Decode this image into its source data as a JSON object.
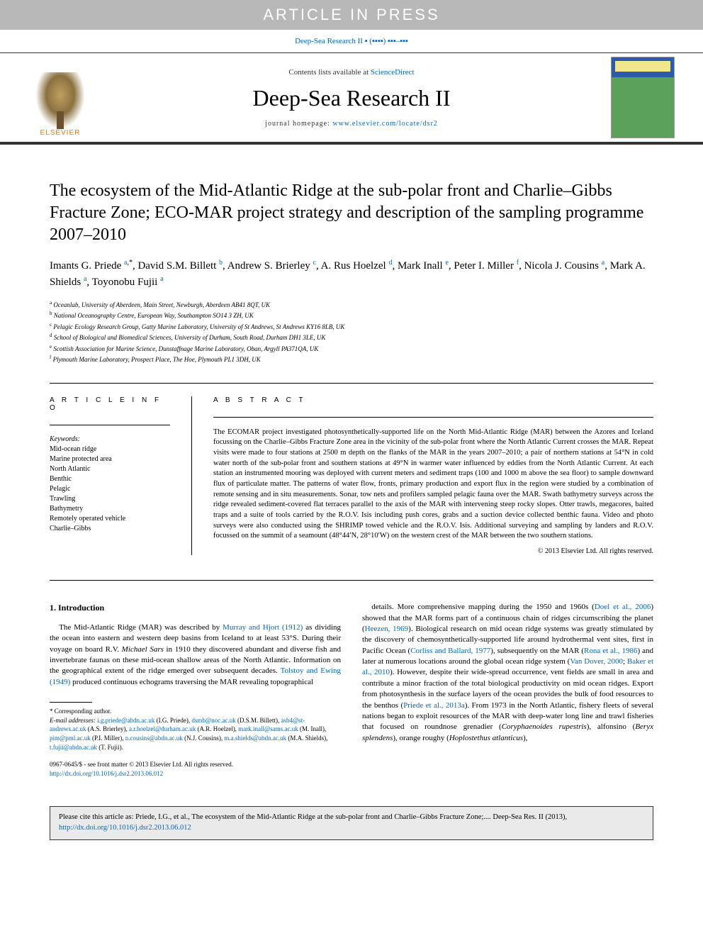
{
  "banner": "ARTICLE IN PRESS",
  "journalRef": "Deep-Sea Research II ▪ (▪▪▪▪) ▪▪▪–▪▪▪",
  "header": {
    "contentsPrefix": "Contents lists available at ",
    "contentsLink": "ScienceDirect",
    "journalTitle": "Deep-Sea Research II",
    "homepagePrefix": "journal homepage: ",
    "homepageUrl": "www.elsevier.com/locate/dsr2",
    "publisher": "ELSEVIER",
    "coverLabel": "DEEP-SEA RESEARCH PART II"
  },
  "title": "The ecosystem of the Mid-Atlantic Ridge at the sub-polar front and Charlie–Gibbs Fracture Zone; ECO-MAR project strategy and description of the sampling programme 2007–2010",
  "authors": [
    {
      "name": "Imants G. Priede",
      "aff": "a",
      "corr": true
    },
    {
      "name": "David S.M. Billett",
      "aff": "b"
    },
    {
      "name": "Andrew S. Brierley",
      "aff": "c"
    },
    {
      "name": "A. Rus Hoelzel",
      "aff": "d"
    },
    {
      "name": "Mark Inall",
      "aff": "e"
    },
    {
      "name": "Peter I. Miller",
      "aff": "f"
    },
    {
      "name": "Nicola J. Cousins",
      "aff": "a"
    },
    {
      "name": "Mark A. Shields",
      "aff": "a"
    },
    {
      "name": "Toyonobu Fujii",
      "aff": "a"
    }
  ],
  "affiliations": [
    {
      "key": "a",
      "text": "Oceanlab, University of Aberdeen, Main Street, Newburgh, Aberdeen AB41 8QT, UK"
    },
    {
      "key": "b",
      "text": "National Oceanography Centre, European Way, Southampton SO14 3 ZH, UK"
    },
    {
      "key": "c",
      "text": "Pelagic Ecology Research Group, Gatty Marine Laboratory, University of St Andrews, St Andrews KY16 8LB, UK"
    },
    {
      "key": "d",
      "text": "School of Biological and Biomedical Sciences, University of Durham, South Road, Durham DH1 3LE, UK"
    },
    {
      "key": "e",
      "text": "Scottish Association for Marine Science, Dunstaffnage Marine Laboratory, Oban, Argyll PA371QA, UK"
    },
    {
      "key": "f",
      "text": "Plymouth Marine Laboratory, Prospect Place, The Hoe, Plymouth PL1 3DH, UK"
    }
  ],
  "articleInfo": {
    "heading": "A R T I C L E   I N F O",
    "keywordsLabel": "Keywords:",
    "keywords": [
      "Mid-ocean ridge",
      "Marine protected area",
      "North Atlantic",
      "Benthic",
      "Pelagic",
      "Trawling",
      "Bathymetry",
      "Remotely operated vehicle",
      "Charlie–Gibbs"
    ]
  },
  "abstract": {
    "heading": "A B S T R A C T",
    "text": "The ECOMAR project investigated photosynthetically-supported life on the North Mid-Atlantic Ridge (MAR) between the Azores and Iceland focussing on the Charlie–Gibbs Fracture Zone area in the vicinity of the sub-polar front where the North Atlantic Current crosses the MAR. Repeat visits were made to four stations at 2500 m depth on the flanks of the MAR in the years 2007–2010; a pair of northern stations at 54°N in cold water north of the sub-polar front and southern stations at 49°N in warmer water influenced by eddies from the North Atlantic Current. At each station an instrumented mooring was deployed with current meters and sediment traps (100 and 1000 m above the sea floor) to sample downward flux of particulate matter. The patterns of water flow, fronts, primary production and export flux in the region were studied by a combination of remote sensing and in situ measurements. Sonar, tow nets and profilers sampled pelagic fauna over the MAR. Swath bathymetry surveys across the ridge revealed sediment-covered flat terraces parallel to the axis of the MAR with intervening steep rocky slopes. Otter trawls, megacores, baited traps and a suite of tools carried by the R.O.V. Isis including push cores, grabs and a suction device collected benthic fauna. Video and photo surveys were also conducted using the SHRIMP towed vehicle and the R.O.V. Isis. Additional surveying and sampling by landers and R.O.V. focussed on the summit of a seamount (48°44′N, 28°10′W) on the western crest of the MAR between the two southern stations.",
    "copyright": "© 2013 Elsevier Ltd. All rights reserved."
  },
  "body": {
    "heading": "1.  Introduction",
    "col1": "The Mid-Atlantic Ridge (MAR) was described by Murray and Hjort (1912) as dividing the ocean into eastern and western deep basins from Iceland to at least 53°S. During their voyage on board R.V. Michael Sars in 1910 they discovered abundant and diverse fish and invertebrate faunas on these mid-ocean shallow areas of the North Atlantic. Information on the geographical extent of the ridge emerged over subsequent decades. Tolstoy and Ewing (1949) produced continuous echograms traversing the MAR revealing topographical",
    "col2": "details. More comprehensive mapping during the 1950 and 1960s (Doel et al., 2006) showed that the MAR forms part of a continuous chain of ridges circumscribing the planet (Heezen, 1969). Biological research on mid ocean ridge systems was greatly stimulated by the discovery of chemosynthetically-supported life around hydrothermal vent sites, first in Pacific Ocean (Corliss and Ballard, 1977), subsequently on the MAR (Rona et al., 1986) and later at numerous locations around the global ocean ridge system (Van Dover, 2000; Baker et al., 2010). However, despite their wide-spread occurrence, vent fields are small in area and contribute a minor fraction of the total biological productivity on mid ocean ridges. Export from photosynthesis in the surface layers of the ocean provides the bulk of food resources to the benthos (Priede et al., 2013a). From 1973 in the North Atlantic, fishery fleets of several nations began to exploit resources of the MAR with deep-water long line and trawl fisheries that focused on roundnose grenadier (Coryphaenoides rupestris), alfonsino (Beryx splendens), orange roughy (Hoplostethus atlanticus),"
  },
  "footnotes": {
    "correspondingLabel": "* Corresponding author.",
    "emailLabel": "E-mail addresses: ",
    "emails": [
      {
        "email": "i.g.priede@abdn.ac.uk",
        "name": "(I.G. Priede)"
      },
      {
        "email": "dsmb@noc.ac.uk",
        "name": "(D.S.M. Billett)"
      },
      {
        "email": "asb4@st-andrews.ac.uk",
        "name": "(A.S. Brierley)"
      },
      {
        "email": "a.r.hoelzel@durham.ac.uk",
        "name": "(A.R. Hoelzel)"
      },
      {
        "email": "mark.inall@sams.ac.uk",
        "name": "(M. Inall)"
      },
      {
        "email": "pim@pml.ac.uk",
        "name": "(P.I. Miller)"
      },
      {
        "email": "n.cousins@abdn.ac.uk",
        "name": "(N.J. Cousins)"
      },
      {
        "email": "m.a.shields@abdn.ac.uk",
        "name": "(M.A. Shields)"
      },
      {
        "email": "t.fujii@abdn.ac.uk",
        "name": "(T. Fujii)"
      }
    ],
    "issn": "0967-0645/$ - see front matter © 2013 Elsevier Ltd. All rights reserved.",
    "doi": "http://dx.doi.org/10.1016/j.dsr2.2013.06.012"
  },
  "citeBox": {
    "text": "Please cite this article as: Priede, I.G., et al., The ecosystem of the Mid-Atlantic Ridge at the sub-polar front and Charlie–Gibbs Fracture Zone;.... Deep-Sea Res. II (2013), ",
    "link": "http://dx.doi.org/10.1016/j.dsr2.2013.06.012"
  },
  "colors": {
    "link": "#0066cc",
    "bannerBg": "#b8b8b8",
    "citeBg": "#eaeaea",
    "elsevierOrange": "#e67817"
  }
}
